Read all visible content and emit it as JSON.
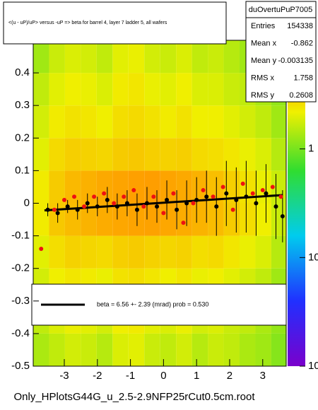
{
  "chart_data": {
    "type": "heatmap",
    "title": "<(u - uP)/uP> versus -uP => beta for barrel 4, layer 7 ladder 5, all wafers",
    "x_label": "Only_HPlotsG44G_u_2.5-2.9NFP25rCut0.5cm.root",
    "xlim": [
      -3.94,
      3.71
    ],
    "ylim": [
      -0.5,
      0.5
    ],
    "xticks": [
      -3,
      -2,
      -1,
      0,
      1,
      2,
      3
    ],
    "yticks": [
      -0.5,
      -0.4,
      -0.3,
      -0.2,
      -0.1,
      0,
      0.1,
      0.2,
      0.3,
      0.4
    ],
    "zlim": [
      0.01,
      10
    ],
    "zticks": [
      {
        "value": 0.01,
        "label": "10"
      },
      {
        "value": 0.1,
        "label": "10"
      },
      1
    ],
    "xbins": [
      -3.94,
      -3.46,
      -2.98,
      -2.5,
      -2.02,
      -1.54,
      -1.06,
      -0.58,
      -0.1,
      0.38,
      0.86,
      1.34,
      1.82,
      2.3,
      2.78,
      3.26,
      3.71
    ],
    "ybins": [
      -0.5,
      -0.4,
      -0.3,
      -0.2,
      -0.1,
      0,
      0.1,
      0.2,
      0.3,
      0.4,
      0.5
    ],
    "z": [
      [
        1.4,
        1.6,
        1.8,
        1.7,
        1.5,
        1.9,
        2.0,
        1.7,
        1.6,
        1.8,
        1.5,
        1.7,
        1.6,
        1.4,
        1.3,
        1.1
      ],
      [
        1.6,
        1.9,
        2.1,
        2.0,
        1.8,
        2.2,
        2.3,
        2.0,
        1.9,
        2.1,
        1.8,
        1.9,
        1.7,
        1.6,
        1.4,
        1.2
      ],
      [
        1.8,
        2.2,
        2.4,
        2.3,
        2.1,
        2.5,
        2.6,
        2.4,
        2.2,
        2.4,
        2.1,
        2.2,
        2.0,
        1.8,
        1.6,
        1.3
      ],
      [
        2.0,
        2.6,
        2.9,
        2.8,
        2.7,
        3.0,
        3.1,
        2.9,
        2.8,
        2.9,
        2.6,
        2.7,
        2.4,
        2.1,
        1.9,
        1.5
      ],
      [
        2.3,
        3.2,
        3.6,
        3.9,
        4.2,
        4.4,
        4.5,
        4.6,
        4.4,
        4.2,
        3.9,
        3.6,
        3.1,
        2.6,
        2.2,
        1.7
      ],
      [
        2.3,
        3.1,
        3.7,
        4.0,
        4.3,
        4.5,
        4.7,
        4.8,
        4.5,
        4.3,
        4.0,
        3.5,
        3.0,
        2.5,
        2.1,
        1.7
      ],
      [
        2.0,
        2.7,
        3.0,
        2.9,
        2.8,
        3.1,
        3.2,
        3.0,
        2.9,
        3.0,
        2.7,
        2.6,
        2.4,
        2.1,
        1.9,
        1.5
      ],
      [
        1.8,
        2.3,
        2.5,
        2.4,
        2.2,
        2.6,
        2.7,
        2.5,
        2.3,
        2.5,
        2.2,
        2.2,
        2.0,
        1.8,
        1.6,
        1.3
      ],
      [
        1.6,
        2.0,
        2.2,
        2.1,
        1.9,
        2.3,
        2.4,
        2.1,
        2.0,
        2.2,
        1.9,
        1.9,
        1.7,
        1.6,
        1.4,
        1.2
      ],
      [
        1.3,
        1.7,
        1.9,
        1.8,
        1.6,
        2.0,
        2.1,
        1.8,
        1.7,
        1.9,
        1.6,
        1.7,
        1.5,
        1.3,
        1.2,
        1.0
      ]
    ],
    "profile": {
      "color": "#000000",
      "x": [
        -3.5,
        -3.2,
        -2.9,
        -2.6,
        -2.3,
        -2.0,
        -1.7,
        -1.4,
        -1.1,
        -0.8,
        -0.5,
        -0.2,
        0.1,
        0.4,
        0.7,
        1.0,
        1.3,
        1.6,
        1.9,
        2.2,
        2.5,
        2.8,
        3.1,
        3.4,
        3.6
      ],
      "values": [
        -0.02,
        -0.03,
        -0.01,
        -0.02,
        0.0,
        -0.01,
        0.01,
        -0.01,
        0.0,
        -0.02,
        0.0,
        -0.01,
        0.01,
        -0.02,
        0.0,
        0.01,
        0.02,
        -0.01,
        0.03,
        0.01,
        0.02,
        0.0,
        0.03,
        -0.01,
        -0.04
      ],
      "errors": [
        0.02,
        0.03,
        0.02,
        0.03,
        0.03,
        0.03,
        0.04,
        0.04,
        0.04,
        0.05,
        0.05,
        0.05,
        0.06,
        0.06,
        0.07,
        0.07,
        0.08,
        0.09,
        0.1,
        0.1,
        0.11,
        0.1,
        0.09,
        0.1,
        0.08
      ]
    },
    "points": {
      "color": "#ee1111",
      "x": [
        -3.7,
        -3.3,
        -3.0,
        -2.7,
        -2.4,
        -2.1,
        -1.8,
        -1.5,
        -1.2,
        -0.9,
        -0.6,
        -0.3,
        0.0,
        0.3,
        0.6,
        0.9,
        1.2,
        1.5,
        1.8,
        2.1,
        2.4,
        2.7,
        3.0,
        3.3,
        3.55
      ],
      "values": [
        -0.14,
        -0.02,
        0.01,
        0.02,
        -0.01,
        0.02,
        0.03,
        0.0,
        0.02,
        0.04,
        -0.01,
        0.02,
        -0.03,
        0.03,
        -0.06,
        0.0,
        0.04,
        0.02,
        0.05,
        -0.02,
        0.06,
        0.03,
        0.04,
        0.05,
        0.02
      ]
    },
    "fit_line": {
      "color": "#000000",
      "x": [
        -3.6,
        3.6
      ],
      "y": [
        -0.022,
        0.025
      ]
    },
    "legend_text": "beta =    6.56 +-   2.39 (mrad) prob = 0.530",
    "stats": {
      "title": "duOvertuPuP7005",
      "rows": [
        [
          "Entries",
          154338
        ],
        [
          "Mean x",
          -0.862
        ],
        [
          "Mean y",
          -0.003135
        ],
        [
          "RMS x",
          1.758
        ],
        [
          "RMS y",
          0.2608
        ]
      ]
    }
  }
}
